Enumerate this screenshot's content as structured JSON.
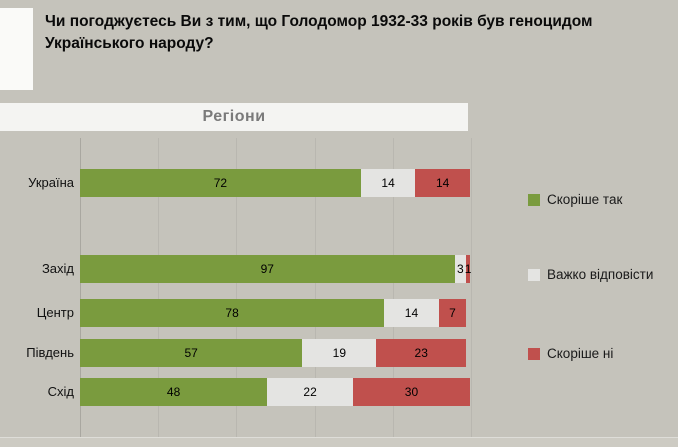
{
  "title": "Чи погоджуєтесь Ви з тим, що Голодомор 1932-33 років був геноцидом Українського народу?",
  "section_header": "Регіони",
  "colors": {
    "background": "#c5c3bb",
    "header_strip": "#f4f4f2",
    "header_text": "#7a7a7a"
  },
  "legend": {
    "agree": {
      "label": "Скоріше так",
      "color": "#7a9b3e"
    },
    "neutral": {
      "label": "Важко відповісти",
      "color": "#e4e4e2"
    },
    "disagree": {
      "label": "Скоріше ні",
      "color": "#c0504d"
    }
  },
  "chart_data": {
    "type": "bar",
    "orientation": "horizontal-stacked",
    "title": "Чи погоджуєтесь Ви з тим, що Голодомор 1932-33 років був геноцидом Українського народу?",
    "group_header": "Регіони",
    "categories": [
      "Україна",
      "Захід",
      "Центр",
      "Південь",
      "Схід"
    ],
    "series": [
      {
        "key": "agree",
        "name": "Скоріше так",
        "color": "#7a9b3e",
        "values": [
          72,
          97,
          78,
          57,
          48
        ]
      },
      {
        "key": "neutral",
        "name": "Важко відповісти",
        "color": "#e4e4e2",
        "values": [
          14,
          3,
          14,
          19,
          22
        ]
      },
      {
        "key": "disagree",
        "name": "Скоріше ні",
        "color": "#c0504d",
        "values": [
          14,
          1,
          7,
          23,
          30
        ]
      }
    ],
    "xlim": [
      0,
      100
    ],
    "grid": true,
    "value_labels_visible": true,
    "legend_position": "right"
  }
}
